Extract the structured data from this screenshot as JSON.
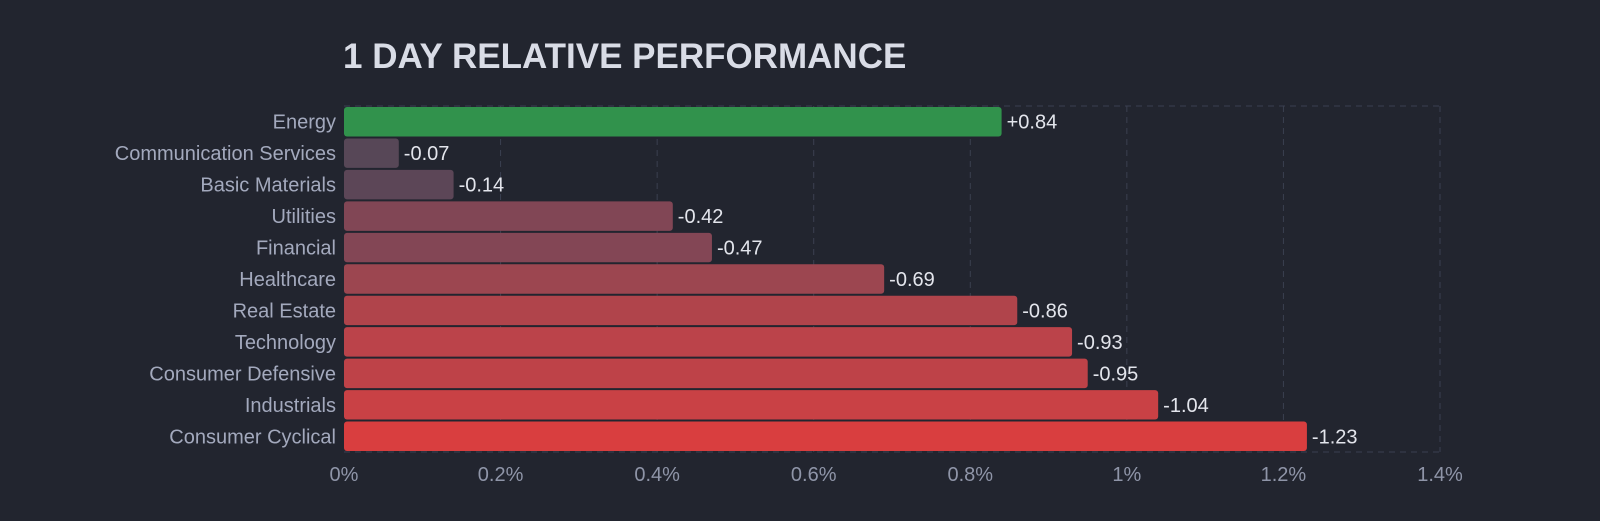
{
  "chart_data": {
    "type": "bar",
    "orientation": "horizontal",
    "title": "1 DAY RELATIVE PERFORMANCE",
    "categories": [
      "Energy",
      "Communication Services",
      "Basic Materials",
      "Utilities",
      "Financial",
      "Healthcare",
      "Real Estate",
      "Technology",
      "Consumer Defensive",
      "Industrials",
      "Consumer Cyclical"
    ],
    "values": [
      0.84,
      -0.07,
      -0.14,
      -0.42,
      -0.47,
      -0.69,
      -0.86,
      -0.93,
      -0.95,
      -1.04,
      -1.23
    ],
    "value_labels": [
      "+0.84",
      "-0.07",
      "-0.14",
      "-0.42",
      "-0.47",
      "-0.69",
      "-0.86",
      "-0.93",
      "-0.95",
      "-1.04",
      "-1.23"
    ],
    "bar_colors": [
      "#31924c",
      "#574757",
      "#5c4657",
      "#814655",
      "#834655",
      "#9c4650",
      "#b0444b",
      "#bb434a",
      "#be4248",
      "#c94145",
      "#d93e3f"
    ],
    "xlim": [
      0,
      1.4
    ],
    "x_ticks": [
      0,
      0.2,
      0.4,
      0.6,
      0.8,
      1.0,
      1.2,
      1.4
    ],
    "x_tick_labels": [
      "0%",
      "0.2%",
      "0.4%",
      "0.6%",
      "0.8%",
      "1%",
      "1.2%",
      "1.4%"
    ],
    "x_scale": "absolute value",
    "grid": true
  }
}
